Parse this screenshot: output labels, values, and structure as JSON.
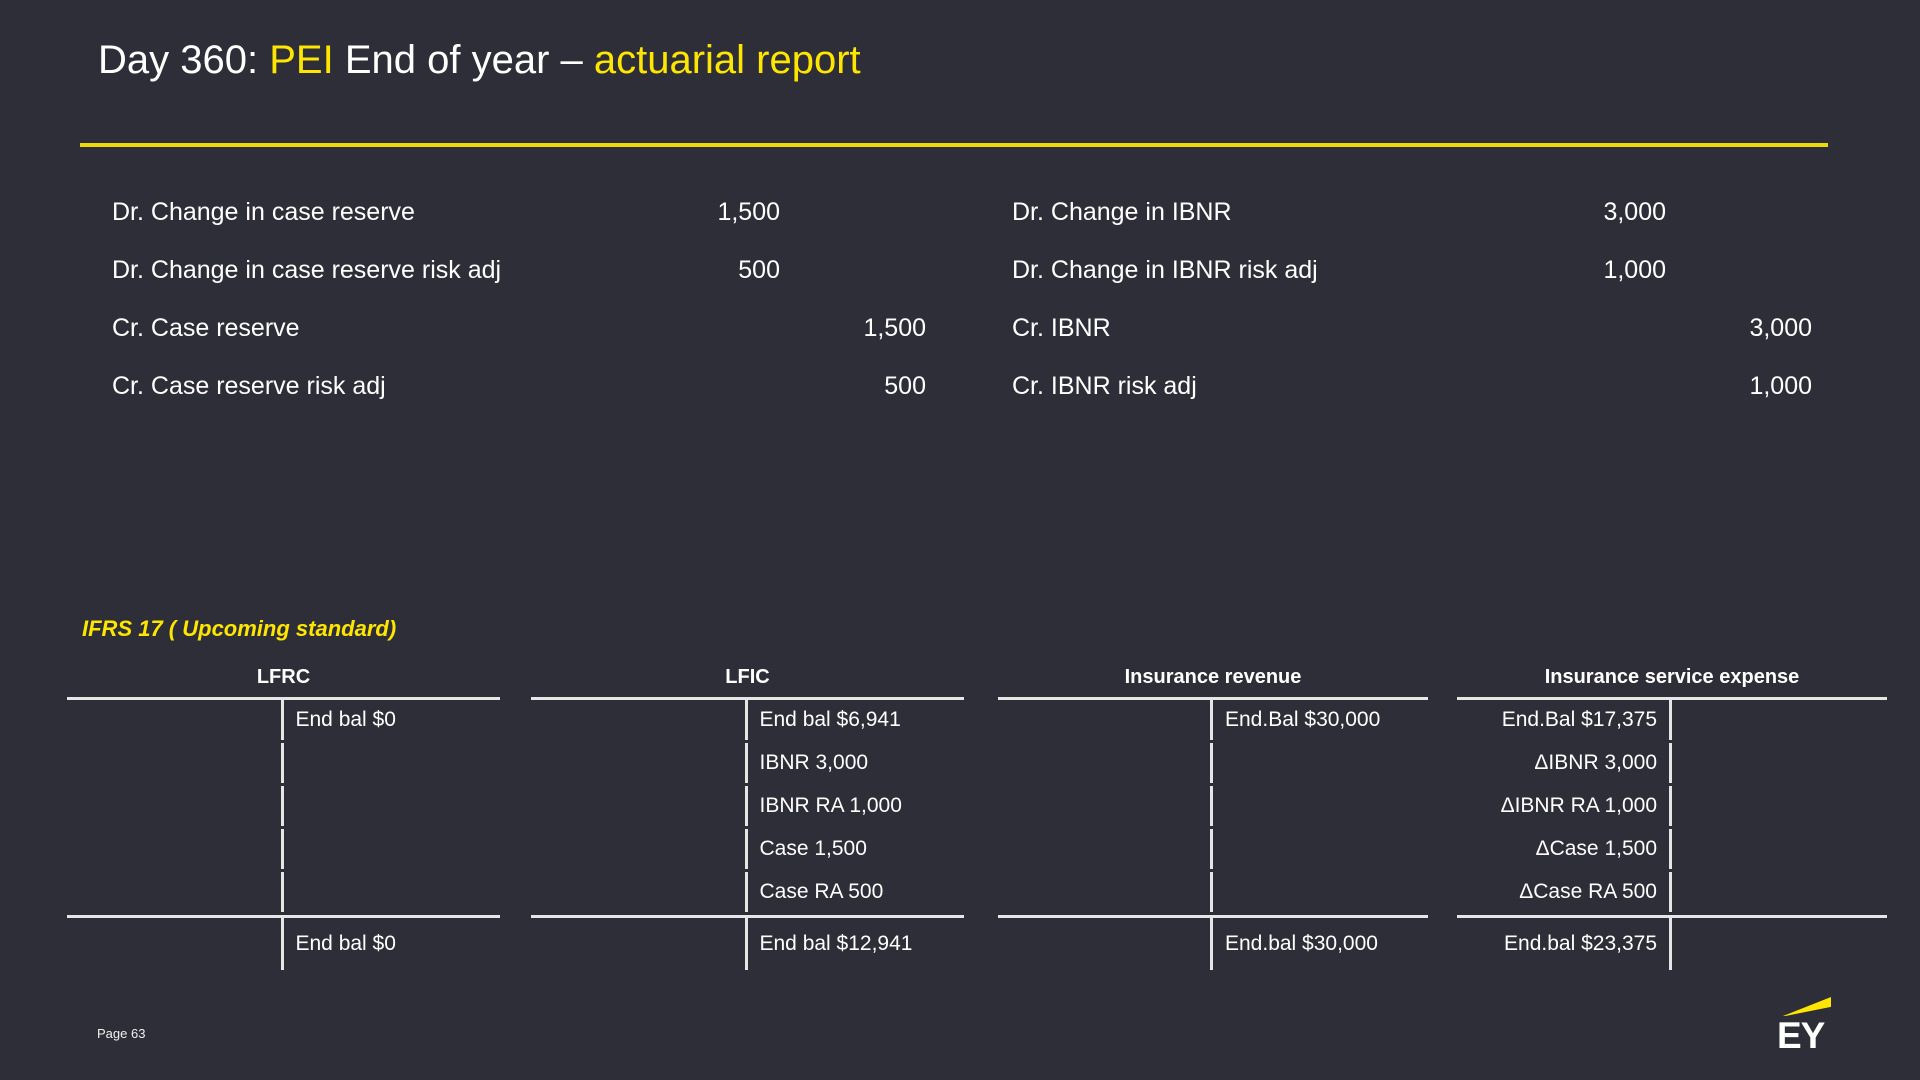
{
  "slide": {
    "title": {
      "prefix": "Day 360: ",
      "highlight1": "PEI",
      "middle": " End of year – ",
      "highlight2": "actuarial report"
    },
    "journal_left": {
      "rows": [
        {
          "label": "Dr. Change in case reserve",
          "debit": "1,500",
          "credit": ""
        },
        {
          "label": "Dr. Change in case reserve risk adj",
          "debit": "500",
          "credit": ""
        },
        {
          "label": "Cr. Case reserve",
          "debit": "",
          "credit": "1,500"
        },
        {
          "label": "Cr. Case reserve risk adj",
          "debit": "",
          "credit": "500"
        }
      ]
    },
    "journal_right": {
      "rows": [
        {
          "label": "Dr. Change in IBNR",
          "debit": "3,000",
          "credit": ""
        },
        {
          "label": "Dr. Change in IBNR risk adj",
          "debit": "1,000",
          "credit": ""
        },
        {
          "label": "Cr. IBNR",
          "debit": "",
          "credit": "3,000"
        },
        {
          "label": "Cr. IBNR risk adj",
          "debit": "",
          "credit": "1,000"
        }
      ]
    },
    "ifrs_note": "IFRS 17 ( Upcoming standard)",
    "taccounts": [
      {
        "title": "LFRC",
        "entries_side": "credit",
        "entries": [
          "End bal $0",
          "",
          "",
          "",
          ""
        ],
        "total": "End bal $0"
      },
      {
        "title": "LFIC",
        "entries_side": "credit",
        "entries": [
          "End bal $6,941",
          "IBNR 3,000",
          "IBNR RA 1,000",
          "Case 1,500",
          "Case RA 500"
        ],
        "total": "End bal $12,941"
      },
      {
        "title": "Insurance revenue",
        "entries_side": "credit",
        "entries": [
          "End.Bal $30,000",
          "",
          "",
          "",
          ""
        ],
        "total": "End.bal $30,000"
      },
      {
        "title": "Insurance service expense",
        "entries_side": "debit",
        "entries": [
          "End.Bal $17,375",
          "ΔIBNR 3,000",
          "ΔIBNR RA 1,000",
          "ΔCase 1,500",
          "ΔCase RA 500"
        ],
        "total": "End.bal $23,375"
      }
    ],
    "footer": {
      "page_label": "Page 63",
      "logo_text": "EY"
    },
    "colors": {
      "background": "#2E2E38",
      "accent_yellow": "#FFE600",
      "rule_yellow": "#EDD909",
      "line": "#E6E6E6",
      "text": "#FFFFFF"
    }
  }
}
